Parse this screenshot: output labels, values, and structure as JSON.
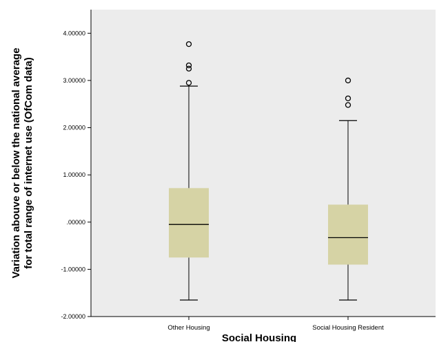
{
  "chart_data": {
    "type": "boxplot",
    "xlabel": "Social Housing",
    "ylabel_line1": "Variation abouve or below the national average",
    "ylabel_line2": "for total range of internet use (OfCom data)",
    "ylim": [
      -2.0,
      4.5
    ],
    "yticks": [
      -2,
      -1,
      0,
      1,
      2,
      3,
      4
    ],
    "ytick_labels": [
      "-2.00000",
      "-1.00000",
      ".00000",
      "1.00000",
      "2.00000",
      "3.00000",
      "4.00000"
    ],
    "categories": [
      "Other Housing",
      "Social Housing Resident"
    ],
    "boxes": [
      {
        "category": "Other Housing",
        "whisker_low": -1.65,
        "q1": -0.75,
        "median": -0.05,
        "q3": 0.72,
        "whisker_high": 2.88,
        "outliers": [
          2.95,
          3.25,
          3.32,
          3.77
        ]
      },
      {
        "category": "Social Housing Resident",
        "whisker_low": -1.65,
        "q1": -0.9,
        "median": -0.33,
        "q3": 0.37,
        "whisker_high": 2.15,
        "outliers": [
          2.48,
          2.62,
          3.0
        ]
      }
    ],
    "colors": {
      "plot_background": "#ececec",
      "box_fill": "#d6d3a5",
      "line": "#000000"
    },
    "grid": false
  }
}
